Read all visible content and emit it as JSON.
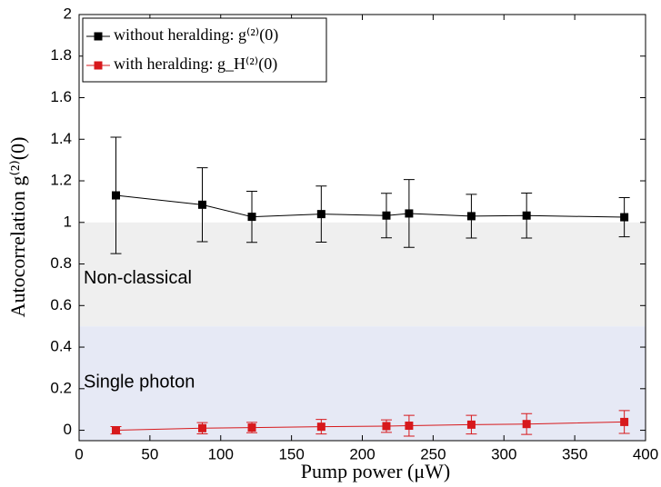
{
  "chart_data": {
    "type": "errorbar-line",
    "xlabel": "Pump power (μW)",
    "ylabel": "Autocorrelation g⁽²⁾(0)",
    "x": [
      26,
      87,
      122,
      171,
      217,
      233,
      277,
      316,
      385
    ],
    "series": [
      {
        "name": "without heralding: g⁽²⁾(0)",
        "color": "#000000",
        "values": [
          1.13,
          1.085,
          1.027,
          1.04,
          1.033,
          1.043,
          1.03,
          1.033,
          1.025
        ],
        "errors": [
          0.28,
          0.178,
          0.123,
          0.135,
          0.107,
          0.163,
          0.105,
          0.108,
          0.094
        ]
      },
      {
        "name": "with heralding: g_H⁽²⁾(0)",
        "color": "#d7191c",
        "values": [
          0.0,
          0.01,
          0.013,
          0.017,
          0.02,
          0.022,
          0.027,
          0.03,
          0.04
        ],
        "errors": [
          0.018,
          0.027,
          0.025,
          0.035,
          0.03,
          0.05,
          0.045,
          0.05,
          0.055
        ]
      }
    ],
    "regions": [
      {
        "label": "Non-classical",
        "range": [
          0.5,
          1.0
        ],
        "color": "#efefef"
      },
      {
        "label": "Single photon",
        "range": [
          -0.05,
          0.5
        ],
        "color": "#e6e9f5"
      }
    ],
    "xlim": [
      0,
      400
    ],
    "xticks": [
      0,
      50,
      100,
      150,
      200,
      250,
      300,
      350,
      400
    ],
    "ylim": [
      -0.05,
      2
    ],
    "yticks": [
      0,
      0.2,
      0.4,
      0.6,
      0.8,
      1,
      1.2,
      1.4,
      1.6,
      1.8,
      2
    ],
    "legend": "upper left",
    "grid": false
  }
}
